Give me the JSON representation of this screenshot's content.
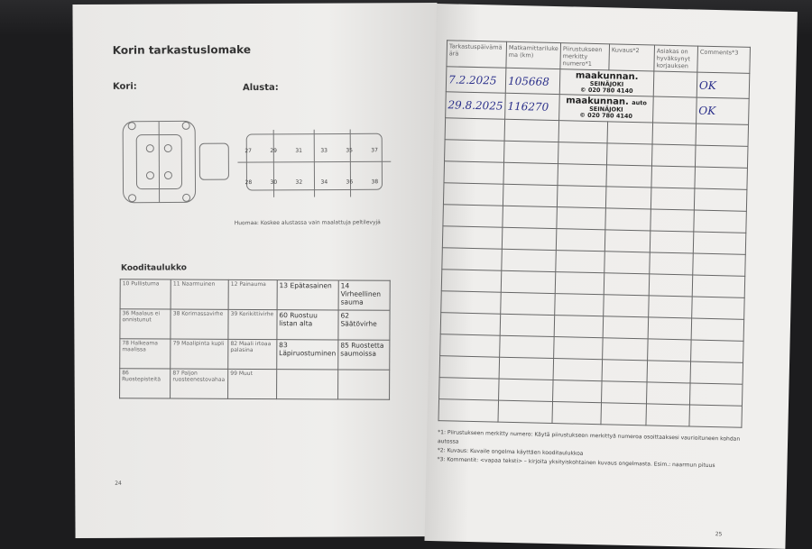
{
  "left_page": {
    "title": "Korin tarkastuslomake",
    "kori_label": "Kori:",
    "alusta_label": "Alusta:",
    "alusta_numbers": [
      "27",
      "29",
      "31",
      "33",
      "35",
      "37",
      "28",
      "30",
      "32",
      "34",
      "36",
      "38"
    ],
    "note": "Huomaa: Koskee alustassa vain maalattuja peltilevyjä",
    "code_table_title": "Kooditaulukko",
    "codes": [
      [
        "10 Pullistuma",
        "11 Naarmuinen",
        "12 Painauma",
        "13 Epätasainen",
        "14 Virheellinen sauma"
      ],
      [
        "36 Maalaus ei onnistunut",
        "38 Korimassavirhe",
        "39 Korikittivirhe",
        "60 Ruostuu listan alta",
        "62 Säätövirhe"
      ],
      [
        "78 Halkeama maalissa",
        "79 Maalipinta kupli",
        "82 Maali irtoaa palasina",
        "83 Läpiruostuminen",
        "85 Ruostetta saumoissa"
      ],
      [
        "86 Ruostepisteitä",
        "87 Paljon ruosteenestovahaa",
        "99 Muut",
        "",
        ""
      ]
    ],
    "page_number": "24"
  },
  "right_page": {
    "headers": [
      "Tarkastuspäivämäärä",
      "Matkamittarilukema (km)",
      "Piirustukseen merkitty numero*1",
      "Kuvaus*2",
      "Asiakas on hyväksynyt korjauksen",
      "Comments*3"
    ],
    "rows": [
      [
        "7.2.2025",
        "105668",
        "",
        "",
        "",
        "OK"
      ],
      [
        "29.8.2025",
        "116270",
        "",
        "",
        "",
        "OK"
      ]
    ],
    "empty_rows": 14,
    "stamp": {
      "brand": "maakunnan.",
      "sub": "auto",
      "city": "SEINÄJOKI",
      "phone": "© 020 780 4140"
    },
    "footnotes": [
      "*1: Piirustukseen merkitty numero:  Käytä piirustukseen merkittyä numeroa osoittaaksesi vaurioituneen kohdan autossa",
      "*2: Kuvaus: Kuvaile ongelma käyttäen kooditaulukkoa",
      "*3: Kommentit: <vapaa teksti> – kirjoita yksityiskohtainen kuvaus ongelmasta. Esim.: naarmun pituus"
    ],
    "page_number": "25"
  }
}
